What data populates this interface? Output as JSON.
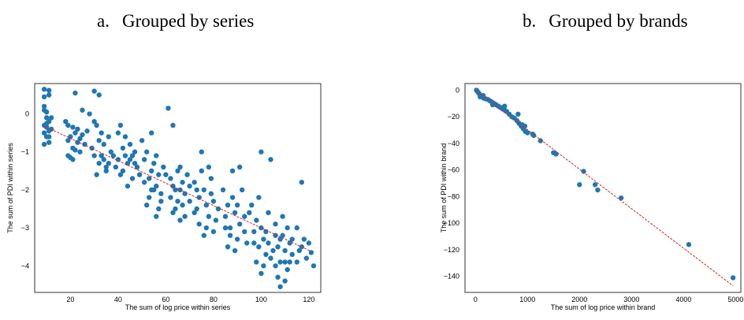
{
  "captions": [
    {
      "letter": "a.",
      "text": "Grouped by series"
    },
    {
      "letter": "b.",
      "text": "Grouped by brands"
    }
  ],
  "colors": {
    "points": "#1f77b4",
    "fit_line": "#d62728",
    "axes": "#000000"
  },
  "chart_data": [
    {
      "type": "scatter",
      "title": "",
      "xlabel": "The sum of log price within series",
      "ylabel": "The sum of PDI within series",
      "xlim": [
        5,
        125
      ],
      "ylim": [
        -4.7,
        0.8
      ],
      "xticks": [
        20,
        40,
        60,
        80,
        100,
        120
      ],
      "yticks": [
        0,
        -1,
        -2,
        -3,
        -4
      ],
      "grid": false,
      "fit_line": {
        "style": "dashed",
        "x": [
          9,
          121
        ],
        "y": [
          -0.32,
          -3.62
        ]
      },
      "points": [
        [
          9,
          0.65
        ],
        [
          11,
          0.62
        ],
        [
          9,
          0.45
        ],
        [
          11,
          0.5
        ],
        [
          9,
          0.2
        ],
        [
          10,
          -0.1
        ],
        [
          9,
          -0.3
        ],
        [
          10,
          -0.6
        ],
        [
          11,
          -0.75
        ],
        [
          9,
          -0.5
        ],
        [
          11,
          -0.2
        ],
        [
          10,
          0.05
        ],
        [
          12,
          -0.4
        ],
        [
          9,
          -0.8
        ],
        [
          11,
          -0.45
        ],
        [
          10,
          -0.25
        ],
        [
          12,
          -0.1
        ],
        [
          9,
          0.1
        ],
        [
          11,
          -0.6
        ],
        [
          10,
          -0.35
        ],
        [
          19,
          -0.3
        ],
        [
          20,
          -0.6
        ],
        [
          21,
          -0.9
        ],
        [
          19,
          -1.1
        ],
        [
          22,
          -0.5
        ],
        [
          23,
          -0.75
        ],
        [
          22,
          0.55
        ],
        [
          25,
          0.1
        ],
        [
          18,
          -0.2
        ],
        [
          24,
          -1.0
        ],
        [
          21,
          -1.2
        ],
        [
          26,
          -0.8
        ],
        [
          23,
          -0.4
        ],
        [
          20,
          -1.15
        ],
        [
          25,
          -0.55
        ],
        [
          22,
          -0.95
        ],
        [
          19,
          -0.7
        ],
        [
          27,
          -0.45
        ],
        [
          24,
          -0.65
        ],
        [
          21,
          -0.35
        ],
        [
          30,
          0.6
        ],
        [
          32,
          0.5
        ],
        [
          28,
          0.0
        ],
        [
          31,
          -0.3
        ],
        [
          33,
          -0.5
        ],
        [
          34,
          -0.8
        ],
        [
          30,
          -1.1
        ],
        [
          32,
          -1.3
        ],
        [
          35,
          -1.5
        ],
        [
          29,
          -0.9
        ],
        [
          33,
          -1.1
        ],
        [
          31,
          -1.6
        ],
        [
          36,
          -0.6
        ],
        [
          34,
          -1.2
        ],
        [
          30,
          -0.2
        ],
        [
          37,
          -1.0
        ],
        [
          35,
          -1.4
        ],
        [
          32,
          -0.7
        ],
        [
          38,
          -1.1
        ],
        [
          36,
          -1.3
        ],
        [
          40,
          -0.5
        ],
        [
          42,
          -0.9
        ],
        [
          44,
          -1.3
        ],
        [
          41,
          -1.6
        ],
        [
          43,
          -1.1
        ],
        [
          45,
          -0.8
        ],
        [
          39,
          -1.4
        ],
        [
          46,
          -1.7
        ],
        [
          42,
          -1.5
        ],
        [
          47,
          -1.0
        ],
        [
          44,
          -1.9
        ],
        [
          40,
          -1.2
        ],
        [
          48,
          -1.4
        ],
        [
          45,
          -1.2
        ],
        [
          41,
          -0.3
        ],
        [
          43,
          -0.6
        ],
        [
          46,
          -1.1
        ],
        [
          49,
          -1.6
        ],
        [
          47,
          -1.3
        ],
        [
          50,
          -0.7
        ],
        [
          52,
          -1.0
        ],
        [
          54,
          -1.5
        ],
        [
          56,
          -1.9
        ],
        [
          53,
          -2.2
        ],
        [
          55,
          -1.3
        ],
        [
          57,
          -1.6
        ],
        [
          51,
          -1.8
        ],
        [
          58,
          -2.1
        ],
        [
          54,
          -0.5
        ],
        [
          56,
          -1.1
        ],
        [
          52,
          -2.4
        ],
        [
          59,
          -1.4
        ],
        [
          55,
          -2.0
        ],
        [
          53,
          -1.7
        ],
        [
          57,
          -2.5
        ],
        [
          60,
          -1.6
        ],
        [
          58,
          -2.3
        ],
        [
          51,
          -1.2
        ],
        [
          56,
          -2.7
        ],
        [
          54,
          -2.0
        ],
        [
          61,
          0.15
        ],
        [
          63,
          -0.3
        ],
        [
          62,
          -1.7
        ],
        [
          64,
          -2.0
        ],
        [
          66,
          -1.4
        ],
        [
          65,
          -2.3
        ],
        [
          67,
          -1.8
        ],
        [
          63,
          -2.6
        ],
        [
          68,
          -2.1
        ],
        [
          66,
          -2.8
        ],
        [
          62,
          -2.2
        ],
        [
          69,
          -1.6
        ],
        [
          64,
          -2.5
        ],
        [
          67,
          -2.4
        ],
        [
          70,
          -1.9
        ],
        [
          65,
          -1.5
        ],
        [
          68,
          -2.7
        ],
        [
          63,
          -1.9
        ],
        [
          66,
          -2.0
        ],
        [
          70,
          -2.3
        ],
        [
          72,
          -1.8
        ],
        [
          74,
          -2.2
        ],
        [
          73,
          -2.5
        ],
        [
          75,
          -1.5
        ],
        [
          76,
          -2.0
        ],
        [
          77,
          -2.4
        ],
        [
          78,
          -2.7
        ],
        [
          74,
          -2.9
        ],
        [
          79,
          -2.1
        ],
        [
          76,
          -3.2
        ],
        [
          72,
          -2.6
        ],
        [
          80,
          -2.3
        ],
        [
          75,
          -1.0
        ],
        [
          78,
          -1.4
        ],
        [
          81,
          -2.8
        ],
        [
          73,
          -2.0
        ],
        [
          77,
          -3.0
        ],
        [
          79,
          -1.7
        ],
        [
          82,
          -2.5
        ],
        [
          80,
          -3.1
        ],
        [
          84,
          -2.0
        ],
        [
          86,
          -2.4
        ],
        [
          85,
          -2.7
        ],
        [
          87,
          -3.0
        ],
        [
          88,
          -2.2
        ],
        [
          89,
          -2.6
        ],
        [
          90,
          -3.3
        ],
        [
          86,
          -3.5
        ],
        [
          91,
          -2.9
        ],
        [
          88,
          -1.5
        ],
        [
          92,
          -2.0
        ],
        [
          93,
          -2.7
        ],
        [
          87,
          -3.2
        ],
        [
          94,
          -3.4
        ],
        [
          90,
          -2.4
        ],
        [
          85,
          -3.0
        ],
        [
          91,
          -1.4
        ],
        [
          89,
          -3.6
        ],
        [
          93,
          -3.1
        ],
        [
          95,
          -2.6
        ],
        [
          96,
          -2.4
        ],
        [
          98,
          -2.8
        ],
        [
          97,
          -3.1
        ],
        [
          99,
          -3.5
        ],
        [
          100,
          -3.0
        ],
        [
          101,
          -3.3
        ],
        [
          102,
          -3.7
        ],
        [
          98,
          -3.9
        ],
        [
          103,
          -3.4
        ],
        [
          100,
          -1.0
        ],
        [
          104,
          -1.2
        ],
        [
          99,
          -2.2
        ],
        [
          105,
          -3.6
        ],
        [
          101,
          -4.0
        ],
        [
          103,
          -2.6
        ],
        [
          97,
          -3.4
        ],
        [
          102,
          -3.1
        ],
        [
          104,
          -3.8
        ],
        [
          100,
          -4.2
        ],
        [
          106,
          -3.2
        ],
        [
          106,
          -2.9
        ],
        [
          107,
          -3.5
        ],
        [
          108,
          -3.9
        ],
        [
          109,
          -3.2
        ],
        [
          110,
          -3.6
        ],
        [
          111,
          -4.1
        ],
        [
          107,
          -4.3
        ],
        [
          108,
          -4.55
        ],
        [
          112,
          -3.4
        ],
        [
          110,
          -3.9
        ],
        [
          109,
          -2.7
        ],
        [
          111,
          -3.0
        ],
        [
          113,
          -3.7
        ],
        [
          108,
          -3.3
        ],
        [
          112,
          -3.9
        ],
        [
          106,
          -4.0
        ],
        [
          113,
          -3.3
        ],
        [
          110,
          -4.4
        ],
        [
          115,
          -3.0
        ],
        [
          117,
          -1.8
        ],
        [
          118,
          -3.3
        ],
        [
          116,
          -3.6
        ],
        [
          119,
          -3.8
        ],
        [
          121,
          -3.65
        ],
        [
          122,
          -4.0
        ],
        [
          117,
          -3.5
        ],
        [
          115,
          -3.9
        ],
        [
          120,
          -3.4
        ]
      ]
    },
    {
      "type": "scatter",
      "title": "",
      "xlabel": "The sum of log price within brand",
      "ylabel": "The sum of PDI within brand",
      "xlim": [
        -200,
        5100
      ],
      "ylim": [
        -152,
        5
      ],
      "xticks": [
        0,
        1000,
        2000,
        3000,
        4000,
        5000
      ],
      "yticks": [
        0,
        -20,
        -40,
        -60,
        -80,
        -100,
        -120,
        -140
      ],
      "grid": false,
      "fit_line": {
        "style": "dashed",
        "x": [
          0,
          4950
        ],
        "y": [
          0,
          -147
        ]
      },
      "points": [
        [
          20,
          0
        ],
        [
          40,
          -1
        ],
        [
          60,
          -2
        ],
        [
          80,
          -3
        ],
        [
          100,
          -4
        ],
        [
          130,
          -5
        ],
        [
          160,
          -6
        ],
        [
          200,
          -6.5
        ],
        [
          240,
          -7
        ],
        [
          280,
          -8
        ],
        [
          320,
          -9
        ],
        [
          360,
          -10
        ],
        [
          400,
          -11
        ],
        [
          440,
          -12
        ],
        [
          480,
          -13
        ],
        [
          520,
          -14
        ],
        [
          560,
          -15
        ],
        [
          600,
          -16
        ],
        [
          650,
          -18
        ],
        [
          700,
          -20
        ],
        [
          750,
          -21
        ],
        [
          800,
          -23
        ],
        [
          840,
          -25
        ],
        [
          880,
          -27
        ],
        [
          920,
          -29
        ],
        [
          960,
          -31
        ],
        [
          1000,
          -32
        ],
        [
          1100,
          -33
        ],
        [
          1250,
          -38
        ],
        [
          1500,
          -47
        ],
        [
          1550,
          -48
        ],
        [
          2000,
          -71
        ],
        [
          2080,
          -61
        ],
        [
          2300,
          -71
        ],
        [
          2350,
          -75
        ],
        [
          2800,
          -81
        ],
        [
          4100,
          -116
        ],
        [
          4950,
          -141
        ],
        [
          90,
          -5
        ],
        [
          150,
          -4
        ],
        [
          330,
          -11
        ],
        [
          560,
          -12
        ],
        [
          820,
          -18
        ],
        [
          900,
          -26
        ],
        [
          950,
          -27
        ],
        [
          1120,
          -34
        ]
      ]
    }
  ]
}
